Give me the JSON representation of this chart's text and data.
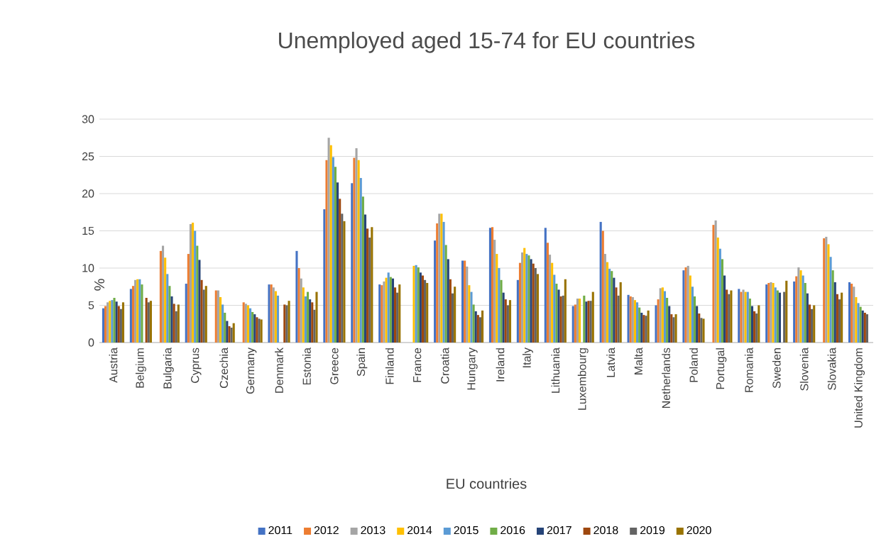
{
  "chart_data": {
    "type": "bar",
    "title": "Unemployed aged 15-74 for EU countries",
    "xlabel": "EU countries",
    "ylabel": "%",
    "categories": [
      "Austria",
      "Belgium",
      "Bulgaria",
      "Cyprus",
      "Czechia",
      "Germany",
      "Denmark",
      "Estonia",
      "Greece",
      "Spain",
      "Finland",
      "France",
      "Croatia",
      "Hungary",
      "Ireland",
      "Italy",
      "Lithuania",
      "Luxembourg",
      "Latvia",
      "Malta",
      "Netherlands",
      "Poland",
      "Portugal",
      "Romania",
      "Sweden",
      "Slovenia",
      "Slovakia",
      "United Kingdom"
    ],
    "series": [
      {
        "name": "2011",
        "color": "#4472c4",
        "values": [
          4.6,
          7.2,
          null,
          7.9,
          null,
          null,
          7.8,
          12.3,
          17.9,
          21.4,
          7.8,
          null,
          13.7,
          11.0,
          15.4,
          8.4,
          15.4,
          4.9,
          16.2,
          6.4,
          5.0,
          9.7,
          null,
          7.2,
          7.8,
          8.2,
          null,
          8.1
        ]
      },
      {
        "name": "2012",
        "color": "#ed7d31",
        "values": [
          4.9,
          7.6,
          12.3,
          11.9,
          7.0,
          5.4,
          7.8,
          10.0,
          24.5,
          24.8,
          7.7,
          null,
          16.0,
          11.0,
          15.5,
          10.7,
          13.4,
          5.1,
          15.0,
          6.2,
          5.8,
          10.1,
          15.8,
          6.8,
          8.0,
          8.9,
          14.0,
          7.9
        ]
      },
      {
        "name": "2013",
        "color": "#a5a5a5",
        "values": [
          5.4,
          8.4,
          13.0,
          15.9,
          7.0,
          5.2,
          7.4,
          8.6,
          27.5,
          26.1,
          8.2,
          null,
          17.3,
          10.2,
          13.8,
          12.1,
          11.8,
          5.9,
          11.9,
          6.1,
          7.3,
          10.3,
          16.4,
          7.1,
          8.1,
          10.1,
          14.2,
          7.5
        ]
      },
      {
        "name": "2014",
        "color": "#ffc000",
        "values": [
          5.6,
          8.5,
          11.4,
          16.1,
          6.1,
          5.0,
          6.9,
          7.4,
          26.5,
          24.5,
          8.7,
          10.3,
          17.3,
          7.7,
          11.9,
          12.7,
          10.7,
          5.9,
          10.8,
          5.7,
          7.4,
          9.0,
          14.1,
          6.8,
          8.0,
          9.7,
          13.2,
          6.1
        ]
      },
      {
        "name": "2015",
        "color": "#5b9bd5",
        "values": [
          5.7,
          8.5,
          9.2,
          15.0,
          5.1,
          4.6,
          6.3,
          6.2,
          24.9,
          22.1,
          9.4,
          10.4,
          16.2,
          6.8,
          10.0,
          11.9,
          9.1,
          null,
          9.9,
          5.4,
          6.9,
          7.5,
          12.6,
          6.8,
          7.4,
          9.0,
          11.5,
          5.3
        ]
      },
      {
        "name": "2016",
        "color": "#70ad47",
        "values": [
          6.0,
          7.8,
          7.6,
          13.0,
          4.0,
          4.1,
          null,
          6.8,
          23.6,
          19.6,
          8.8,
          10.1,
          13.1,
          5.1,
          8.4,
          11.7,
          7.9,
          6.3,
          9.6,
          4.7,
          6.0,
          6.2,
          11.2,
          5.9,
          7.0,
          8.0,
          9.7,
          4.8
        ]
      },
      {
        "name": "2017",
        "color": "#264478",
        "values": [
          5.5,
          null,
          6.2,
          11.1,
          2.9,
          3.8,
          null,
          5.8,
          21.5,
          17.2,
          8.6,
          9.4,
          11.2,
          4.2,
          6.7,
          11.2,
          7.1,
          5.5,
          8.7,
          4.0,
          4.9,
          4.9,
          9.0,
          4.9,
          6.7,
          6.6,
          8.1,
          4.3
        ]
      },
      {
        "name": "2018",
        "color": "#9e480e",
        "values": [
          4.9,
          6.0,
          5.2,
          8.4,
          2.2,
          3.4,
          5.1,
          5.4,
          19.3,
          15.3,
          7.4,
          9.0,
          8.5,
          3.7,
          5.8,
          10.6,
          6.2,
          5.6,
          7.4,
          3.7,
          3.8,
          3.9,
          7.1,
          4.2,
          null,
          5.1,
          6.5,
          4.0
        ]
      },
      {
        "name": "2019",
        "color": "#636363",
        "values": [
          4.5,
          5.4,
          4.2,
          7.1,
          2.0,
          3.2,
          5.0,
          4.4,
          17.3,
          14.1,
          6.7,
          8.4,
          6.6,
          3.4,
          5.0,
          10.0,
          6.3,
          5.6,
          6.3,
          3.6,
          3.4,
          3.3,
          6.5,
          3.9,
          6.8,
          4.5,
          5.8,
          3.8
        ]
      },
      {
        "name": "2020",
        "color": "#997300",
        "values": [
          5.4,
          5.6,
          5.1,
          7.6,
          2.6,
          3.1,
          5.6,
          6.8,
          16.3,
          15.5,
          7.8,
          8.0,
          7.5,
          4.3,
          5.7,
          9.2,
          8.5,
          6.8,
          8.1,
          4.3,
          3.8,
          3.2,
          7.0,
          5.0,
          8.3,
          5.0,
          6.7,
          null
        ]
      }
    ],
    "ylim": [
      0,
      30
    ],
    "yticks": [
      0,
      5,
      10,
      15,
      20,
      25,
      30
    ],
    "grid": "y",
    "legend": "bottom"
  }
}
